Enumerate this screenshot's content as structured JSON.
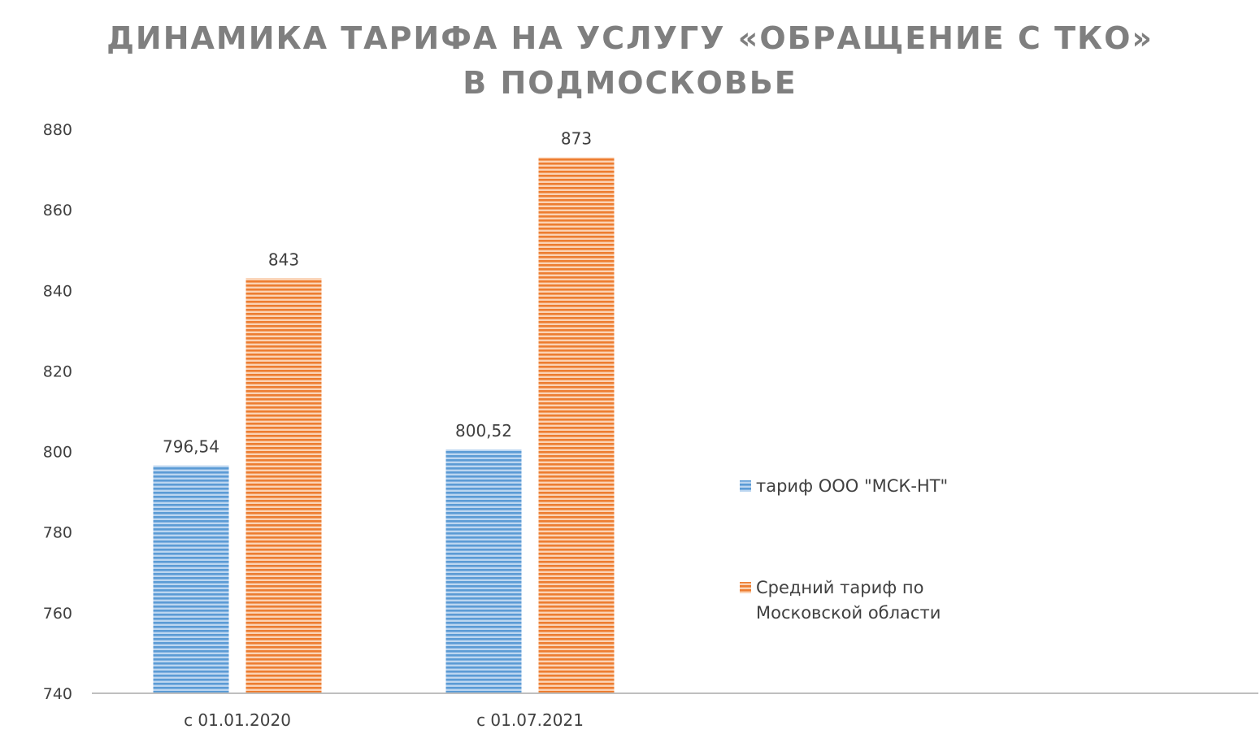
{
  "chart_data": {
    "type": "bar",
    "title": [
      "ДИНАМИКА ТАРИФА НА УСЛУГУ «ОБРАЩЕНИЕ С ТКО»",
      "В ПОДМОСКОВЬЕ"
    ],
    "categories": [
      "с  01.01.2020",
      "с 01.07.2021"
    ],
    "series": [
      {
        "name": "тариф ООО \"МСК-НТ\"",
        "values": [
          796.54,
          800.52
        ],
        "labels": [
          "796,54",
          "800,52"
        ],
        "color": "#5b9bd5"
      },
      {
        "name": [
          "Средний тариф по",
          "Московской области"
        ],
        "values": [
          843,
          873
        ],
        "labels": [
          "843",
          "873"
        ],
        "color": "#ed7d31"
      }
    ],
    "ylim": [
      740,
      880
    ],
    "yticks": [
      740,
      760,
      780,
      800,
      820,
      840,
      860,
      880
    ],
    "grid": false,
    "legend": "right",
    "xlabel": "",
    "ylabel": ""
  }
}
